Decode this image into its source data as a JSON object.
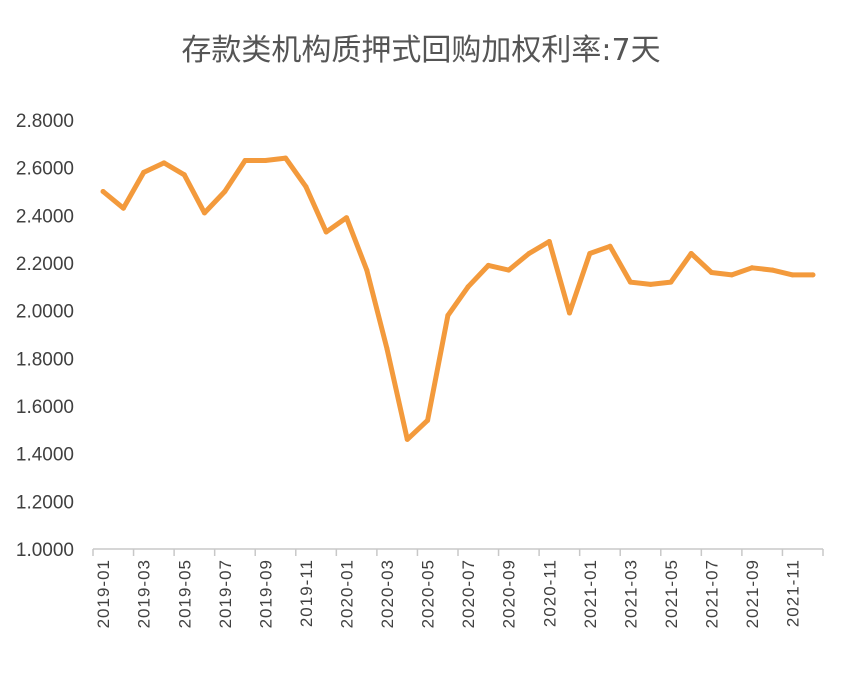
{
  "chart_data": {
    "type": "line",
    "title": "存款类机构质押式回购加权利率:7天",
    "xlabel": "",
    "ylabel": "",
    "ylim": [
      1.0,
      2.8
    ],
    "yticks": [
      "1.0000",
      "1.2000",
      "1.4000",
      "1.6000",
      "1.8000",
      "2.0000",
      "2.2000",
      "2.4000",
      "2.6000",
      "2.8000"
    ],
    "x": [
      "2019-01",
      "2019-02",
      "2019-03",
      "2019-04",
      "2019-05",
      "2019-06",
      "2019-07",
      "2019-08",
      "2019-09",
      "2019-10",
      "2019-11",
      "2019-12",
      "2020-01",
      "2020-02",
      "2020-03",
      "2020-04",
      "2020-05",
      "2020-06",
      "2020-07",
      "2020-08",
      "2020-09",
      "2020-10",
      "2020-11",
      "2020-12",
      "2021-01",
      "2021-02",
      "2021-03",
      "2021-04",
      "2021-05",
      "2021-06",
      "2021-07",
      "2021-08",
      "2021-09",
      "2021-10",
      "2021-11",
      "2021-12"
    ],
    "xtick_labels": [
      "2019-01",
      "2019-03",
      "2019-05",
      "2019-07",
      "2019-09",
      "2019-11",
      "2020-01",
      "2020-03",
      "2020-05",
      "2020-07",
      "2020-09",
      "2020-11",
      "2021-01",
      "2021-03",
      "2021-05",
      "2021-07",
      "2021-09",
      "2021-11"
    ],
    "series": [
      {
        "values": [
          2.5,
          2.43,
          2.58,
          2.62,
          2.57,
          2.41,
          2.5,
          2.63,
          2.63,
          2.64,
          2.52,
          2.33,
          2.39,
          2.17,
          1.84,
          1.46,
          1.54,
          1.98,
          2.1,
          2.19,
          2.17,
          2.24,
          2.29,
          1.99,
          2.24,
          2.27,
          2.12,
          2.11,
          2.12,
          2.24,
          2.16,
          2.15,
          2.18,
          2.17,
          2.15,
          2.15
        ]
      }
    ],
    "grid": false,
    "legend": "none",
    "line_color": "#F39A3C",
    "axis_color": "#C8C8C8"
  }
}
